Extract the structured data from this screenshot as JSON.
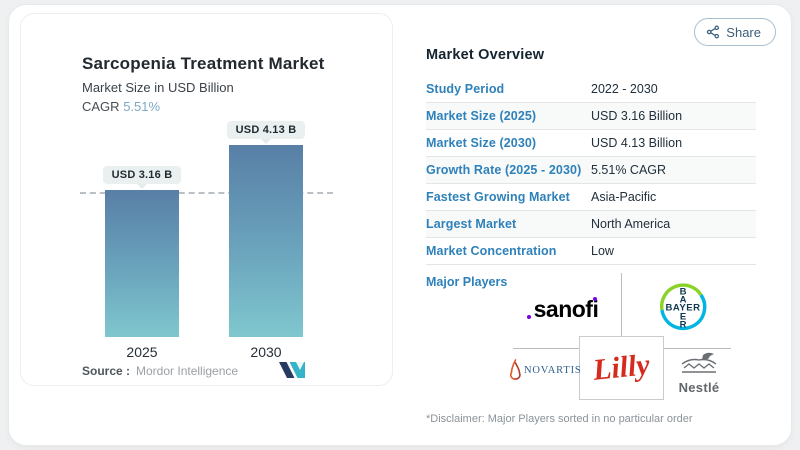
{
  "share_button": {
    "label": "Share"
  },
  "chart_card": {
    "title": "Sarcopenia Treatment Market",
    "subtitle": "Market Size in USD Billion",
    "cagr_label": "CAGR",
    "cagr_value": "5.51%",
    "source_label": "Source :",
    "source_name": "Mordor Intelligence"
  },
  "chart_data": {
    "type": "bar",
    "title": "Sarcopenia Treatment Market",
    "subtitle": "Market Size in USD Billion",
    "unit": "USD Billion",
    "categories": [
      "2025",
      "2030"
    ],
    "values": [
      3.16,
      4.13
    ],
    "bar_labels": [
      "USD 3.16 B",
      "USD 4.13 B"
    ],
    "cagr_percent": 5.51,
    "ylim": [
      0,
      4.5
    ],
    "reference_line_value": 3.16,
    "grid": false,
    "legend": false,
    "bar_gradient_top": "#587fa6",
    "bar_gradient_bottom": "#7fc7ce"
  },
  "overview": {
    "title": "Market Overview",
    "rows": [
      {
        "label": "Study Period",
        "value": "2022 - 2030"
      },
      {
        "label": "Market Size (2025)",
        "value": "USD 3.16 Billion"
      },
      {
        "label": "Market Size (2030)",
        "value": "USD 4.13 Billion"
      },
      {
        "label": "Growth Rate (2025 - 2030)",
        "value": "5.51% CAGR"
      },
      {
        "label": "Fastest Growing Market",
        "value": "Asia-Pacific"
      },
      {
        "label": "Largest Market",
        "value": "North America"
      },
      {
        "label": "Market Concentration",
        "value": "Low"
      }
    ],
    "major_players_label": "Major Players",
    "major_players": [
      "sanofi",
      "Bayer",
      "Novartis",
      "Lilly",
      "Nestlé"
    ],
    "disclaimer": "*Disclaimer: Major Players sorted in no particular order"
  },
  "logos": {
    "sanofi": "sanofi",
    "bayer_word": "BAYER",
    "bayer_vertical": [
      "B",
      "A",
      "E",
      "R"
    ],
    "novartis": "NOVARTIS",
    "lilly": "Lilly",
    "nestle": "Nestlé"
  },
  "colors": {
    "accent_blue": "#2e81ba",
    "cagr_teal": "#7fa9c6",
    "bar_top": "#587fa6",
    "bar_bottom": "#7fc7ce",
    "lilly_red": "#d52b1e",
    "sanofi_purple": "#7a00e6"
  }
}
